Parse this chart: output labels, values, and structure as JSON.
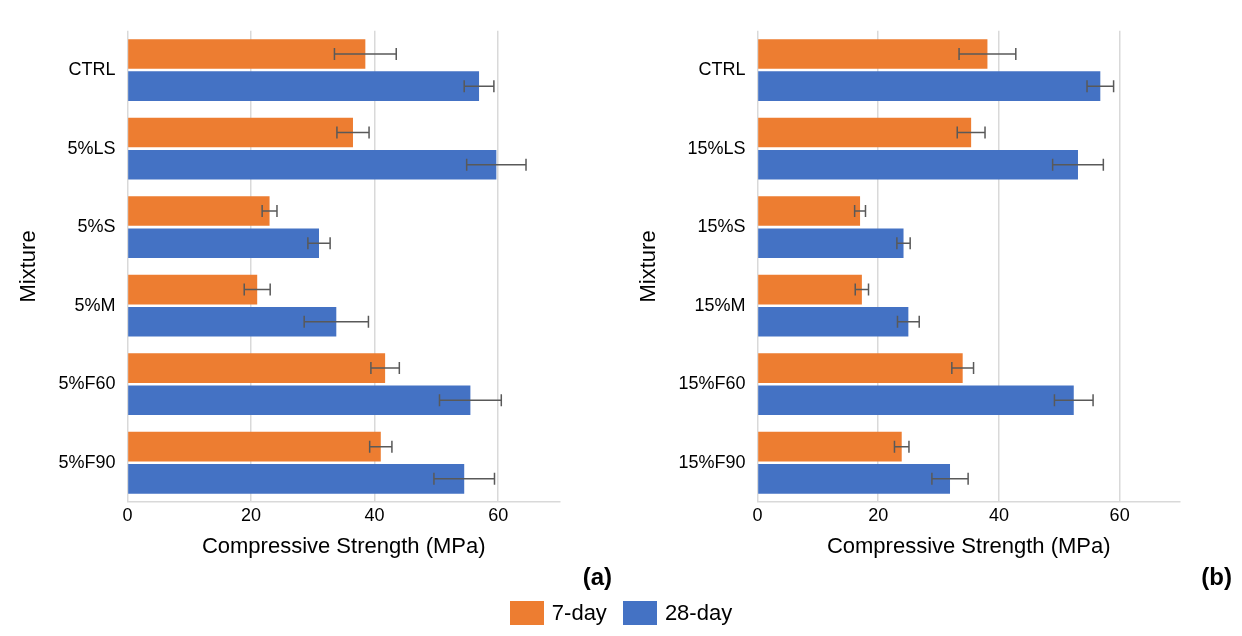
{
  "chart_data": [
    {
      "type": "bar",
      "orientation": "horizontal",
      "categories": [
        "CTRL",
        "5%LS",
        "5%S",
        "5%M",
        "5%F60",
        "5%F90"
      ],
      "series": [
        {
          "name": "7-day",
          "color": "#ed7d31",
          "values": [
            38.5,
            36.5,
            23.0,
            21.0,
            41.7,
            41.0
          ],
          "errors": [
            5.0,
            2.6,
            1.2,
            2.1,
            2.3,
            1.8
          ]
        },
        {
          "name": "28-day",
          "color": "#4472c4",
          "values": [
            56.9,
            59.7,
            31.0,
            33.8,
            55.5,
            54.5
          ],
          "errors": [
            2.4,
            4.8,
            1.8,
            5.2,
            5.0,
            4.9
          ]
        }
      ],
      "xlabel": "Compressive Strength (MPa)",
      "ylabel": "Mixture",
      "xlim": [
        0,
        70
      ],
      "xticks": [
        0,
        20,
        40,
        60
      ],
      "grid": "x",
      "legend": "bottom",
      "annotations": [
        "(a)"
      ]
    },
    {
      "type": "bar",
      "orientation": "horizontal",
      "categories": [
        "CTRL",
        "15%LS",
        "15%S",
        "15%M",
        "15%F60",
        "15%F90"
      ],
      "series": [
        {
          "color": "#ed7d31",
          "values": [
            38.1,
            35.4,
            17.0,
            17.3,
            34.0,
            23.9
          ],
          "errors": [
            4.7,
            2.3,
            0.9,
            1.1,
            1.8,
            1.2
          ]
        },
        {
          "color": "#4472c4",
          "values": [
            56.8,
            53.1,
            24.2,
            25.0,
            52.4,
            31.9
          ],
          "errors": [
            2.2,
            4.2,
            1.1,
            1.8,
            3.2,
            3.0
          ]
        }
      ],
      "xlabel": "Compressive Strength (MPa)",
      "ylabel": "Mixture",
      "xlim": [
        0,
        70
      ],
      "xticks": [
        0,
        20,
        40,
        60
      ],
      "grid": "x",
      "annotations": [
        "(b)"
      ]
    }
  ]
}
